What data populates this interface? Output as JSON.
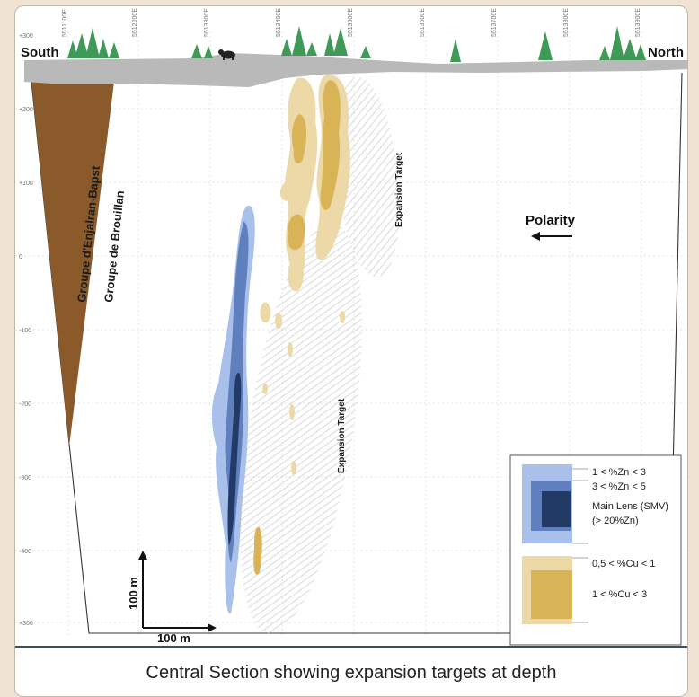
{
  "figure": {
    "caption": "Central Section showing expansion targets at depth"
  },
  "section": {
    "south_label": "South",
    "north_label": "North",
    "easting_ticks": [
      "5511100E",
      "5512200E",
      "5513300E",
      "5513400E",
      "5513500E",
      "5513600E",
      "5513700E",
      "5513800E",
      "5513900E"
    ],
    "elevation_ticks": [
      "+300",
      "+200",
      "+100",
      "0",
      "-100",
      "-200",
      "-300",
      "-400",
      "+300"
    ],
    "formations": {
      "enjalran": "Groupe d'Enjalran-Bapst",
      "brouillan": "Groupe de Brouillan"
    },
    "targets": {
      "upper": "Expansion Target",
      "lower": "Expansion Target"
    },
    "polarity_label": "Polarity",
    "scale": {
      "vertical": "100 m",
      "horizontal": "100 m"
    }
  },
  "legend": {
    "zn_low": "1 < %Zn < 3",
    "zn_mid": "3 < %Zn < 5",
    "main_lens_1": "Main Lens (SMV)",
    "main_lens_2": "(> 20%Zn)",
    "cu_low": "0,5 < %Cu < 1",
    "cu_high": "1 < %Cu < 3"
  },
  "colors": {
    "zn_low": "#a9c1ea",
    "zn_mid": "#5f7fbe",
    "main_lens": "#223a66",
    "cu_low": "#ecd9a7",
    "cu_high": "#d9b457",
    "formation": "#8a5a2b",
    "surface": "#b9b9b9",
    "tree": "#3f9a57",
    "frame_line": "#3f4e5f"
  }
}
